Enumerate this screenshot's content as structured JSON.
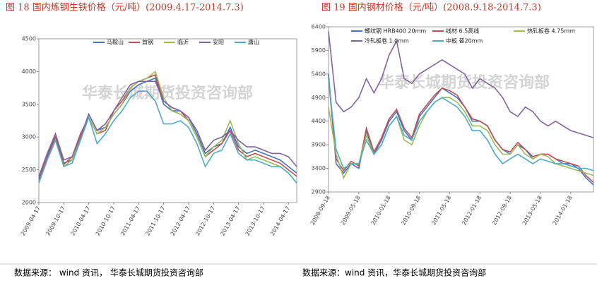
{
  "chart_data": [
    {
      "type": "line",
      "title": "图 18 国内炼钢生铁价格（元/吨）(2009.4.17-2014.7.3)",
      "watermark": "华泰长城期货投资咨询部",
      "source": "数据来源：  wind 资讯，  华泰长城期货投资咨询部",
      "categories": [
        "2009-04-17",
        null,
        null,
        "2009-10-17",
        null,
        null,
        "2010-04-17",
        null,
        null,
        "2010-10-17",
        null,
        null,
        "2011-04-17",
        null,
        null,
        "2011-10-17",
        null,
        null,
        "2012-04-17",
        null,
        null,
        "2012-10-17",
        null,
        null,
        "2013-04-17",
        null,
        null,
        "2013-10-17",
        null,
        null,
        "2014-04-17",
        null
      ],
      "ylim": [
        2000,
        4500
      ],
      "yticks": [
        2000,
        2500,
        3000,
        3500,
        4000,
        4500
      ],
      "series": [
        {
          "name": "马鞍山",
          "color": "#4472c4",
          "values": [
            2350,
            2700,
            3050,
            2600,
            2650,
            3000,
            3350,
            3100,
            3150,
            3350,
            3500,
            3700,
            3800,
            3850,
            3900,
            3500,
            3400,
            3400,
            3300,
            3050,
            2750,
            2850,
            2900,
            3150,
            2850,
            2750,
            2800,
            2750,
            2700,
            2650,
            2550,
            2450
          ]
        },
        {
          "name": "首钢",
          "color": "#c0504d",
          "values": [
            2380,
            2680,
            3000,
            2580,
            2700,
            3050,
            3300,
            3050,
            3100,
            3400,
            3550,
            3750,
            3850,
            3900,
            3950,
            3550,
            3450,
            3400,
            3250,
            3000,
            2700,
            2800,
            2900,
            3100,
            2800,
            2700,
            2750,
            2700,
            2650,
            2600,
            2500,
            2400
          ]
        },
        {
          "name": "临沂",
          "color": "#9bbb59",
          "values": [
            2300,
            2650,
            2950,
            2550,
            2650,
            3000,
            3300,
            3050,
            3150,
            3350,
            3500,
            3750,
            3850,
            3900,
            4000,
            3600,
            3400,
            3350,
            3250,
            3000,
            2700,
            2850,
            2950,
            3250,
            2900,
            2650,
            2700,
            2650,
            2600,
            2550,
            2450,
            2300
          ]
        },
        {
          "name": "安阳",
          "color": "#8064a2",
          "values": [
            2400,
            2750,
            3050,
            2650,
            2700,
            3000,
            3350,
            3100,
            3200,
            3400,
            3600,
            3800,
            3850,
            3850,
            3850,
            3550,
            3450,
            3400,
            3300,
            3100,
            2800,
            2950,
            3000,
            3100,
            2950,
            2850,
            2850,
            2800,
            2750,
            2750,
            2700,
            2550
          ]
        },
        {
          "name": "唐山",
          "color": "#4bacc6",
          "values": [
            2300,
            2650,
            2950,
            2550,
            2600,
            2950,
            3300,
            2900,
            3050,
            3250,
            3400,
            3600,
            3700,
            3700,
            3550,
            3200,
            3200,
            3250,
            3150,
            2900,
            2550,
            2750,
            2800,
            3050,
            2750,
            2650,
            2650,
            2600,
            2550,
            2550,
            2450,
            2300
          ]
        }
      ]
    },
    {
      "type": "line",
      "title": "图 19 国内钢材价格（元/吨）(2008.9.18-2014.7.3)",
      "watermark": "华泰长城期货投资咨询部",
      "source": "数据来源：wind 资讯，华泰长城期货投资咨询部",
      "categories": [
        "2008-09-18",
        null,
        null,
        null,
        "2009-05-18",
        null,
        null,
        null,
        "2010-01-18",
        null,
        null,
        null,
        "2010-09-18",
        null,
        null,
        null,
        "2011-05-18",
        null,
        null,
        null,
        "2012-01-18",
        null,
        null,
        null,
        "2012-09-18",
        null,
        null,
        null,
        "2013-05-18",
        null,
        null,
        null,
        "2014-01-18",
        null,
        null,
        null
      ],
      "ylim": [
        2900,
        6400
      ],
      "yticks": [
        2900,
        3400,
        3900,
        4400,
        4900,
        5400,
        5900,
        6400
      ],
      "series": [
        {
          "name": "螺纹钢 HRB400 20mm",
          "color": "#4472c4",
          "values": [
            5400,
            3500,
            3300,
            3500,
            3400,
            4200,
            3700,
            4000,
            4400,
            4600,
            4200,
            4000,
            4500,
            4700,
            4900,
            5100,
            5000,
            4900,
            4700,
            4400,
            4400,
            4300,
            4000,
            3800,
            3700,
            3900,
            3800,
            3600,
            3700,
            3700,
            3600,
            3500,
            3500,
            3400,
            3200,
            3050
          ]
        },
        {
          "name": "线材 6.5高线",
          "color": "#c0504d",
          "values": [
            5300,
            3600,
            3350,
            3550,
            3450,
            4250,
            3750,
            4050,
            4450,
            4650,
            4250,
            4050,
            4550,
            4750,
            4950,
            5100,
            5050,
            4950,
            4700,
            4450,
            4400,
            4300,
            4000,
            3800,
            3750,
            3950,
            3800,
            3650,
            3700,
            3700,
            3600,
            3550,
            3500,
            3450,
            3250,
            3100
          ]
        },
        {
          "name": "热轧板卷 4.75mm",
          "color": "#9bbb59",
          "values": [
            4700,
            3700,
            3200,
            3500,
            3500,
            4100,
            3700,
            3900,
            4300,
            4500,
            4000,
            3900,
            4300,
            4600,
            4800,
            4900,
            4900,
            4800,
            4600,
            4300,
            4300,
            4200,
            3900,
            3700,
            3700,
            3900,
            3700,
            3600,
            3700,
            3650,
            3500,
            3450,
            3400,
            3350,
            3300,
            3250
          ]
        },
        {
          "name": "冷轧板卷 1.0mm",
          "color": "#8064a2",
          "values": [
            6300,
            4800,
            4600,
            4700,
            4900,
            5300,
            5000,
            5300,
            5800,
            6100,
            5300,
            5200,
            5400,
            5500,
            5600,
            5700,
            5600,
            5500,
            5400,
            5100,
            5300,
            5200,
            5100,
            4900,
            4600,
            4500,
            4700,
            4600,
            4400,
            4300,
            4400,
            4300,
            4200,
            4150,
            4100,
            4050
          ]
        },
        {
          "name": "中板 普20mm",
          "color": "#4bacc6",
          "values": [
            5300,
            3800,
            3400,
            3500,
            3500,
            4000,
            3700,
            3900,
            4300,
            4500,
            4100,
            4000,
            4400,
            4600,
            4800,
            4900,
            4800,
            4700,
            4500,
            4200,
            4200,
            4000,
            3700,
            3500,
            3600,
            3700,
            3600,
            3500,
            3600,
            3550,
            3500,
            3500,
            3450,
            3400,
            3400,
            3350
          ]
        }
      ]
    }
  ]
}
